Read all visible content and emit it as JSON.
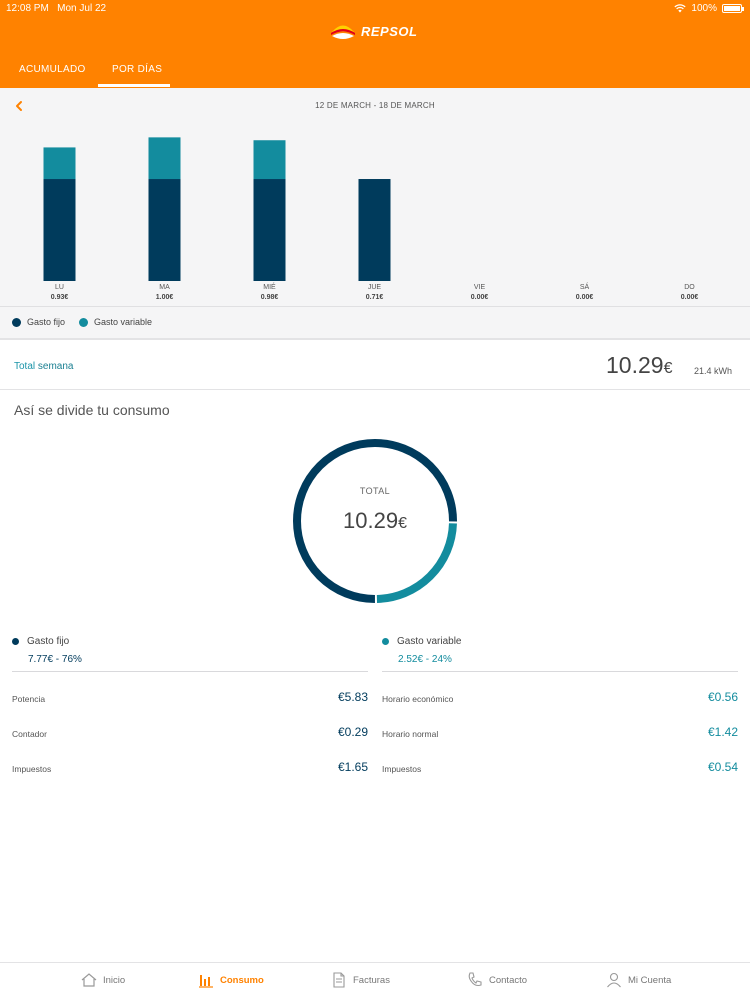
{
  "status": {
    "time": "12:08 PM",
    "date": "Mon Jul 22",
    "battery": "100%"
  },
  "brand": {
    "name": "REPSOL"
  },
  "tabs": [
    {
      "label": "ACUMULADO"
    },
    {
      "label": "POR DÍAS"
    }
  ],
  "chart": {
    "range": "12 DE MARCH - 18 DE MARCH"
  },
  "chart_data": {
    "type": "bar",
    "stacked": true,
    "categories": [
      "LU",
      "MA",
      "MIÉ",
      "JUE",
      "VIE",
      "SÁ",
      "DO"
    ],
    "totals_labels": [
      "0.93€",
      "1.00€",
      "0.98€",
      "0.71€",
      "0.00€",
      "0.00€",
      "0.00€"
    ],
    "series": [
      {
        "name": "Gasto fijo",
        "color": "#003b5c",
        "values": [
          0.71,
          0.71,
          0.71,
          0.71,
          0,
          0,
          0
        ]
      },
      {
        "name": "Gasto variable",
        "color": "#138c9e",
        "values": [
          0.22,
          0.29,
          0.27,
          0,
          0,
          0,
          0
        ]
      }
    ],
    "ylim": [
      0,
      1.1
    ],
    "grid": false,
    "legend": "bottom-left"
  },
  "total": {
    "label_prefix": "Total",
    "label_period": "semana",
    "value": "10.29",
    "currency": "€",
    "kwh": "21.4 kWh"
  },
  "breakdown": {
    "title": "Así se divide tu consumo",
    "donut_label": "TOTAL",
    "donut_value": "10.29",
    "donut_currency": "€",
    "fijo": {
      "title": "Gasto fijo",
      "amount": "7.77",
      "currency": "€",
      "percent": "76%",
      "fraction": 0.755,
      "color": "#003b5c",
      "items": [
        {
          "label": "Potencia",
          "value": "€5.83"
        },
        {
          "label": "Contador",
          "value": "€0.29"
        },
        {
          "label": "Impuestos",
          "value": "€1.65"
        }
      ]
    },
    "variable": {
      "title": "Gasto variable",
      "amount": "2.52",
      "currency": "€",
      "percent": "24%",
      "fraction": 0.245,
      "color": "#138c9e",
      "items": [
        {
          "label": "Horario económico",
          "value": "€0.56"
        },
        {
          "label": "Horario normal",
          "value": "€1.42"
        },
        {
          "label": "Impuestos",
          "value": "€0.54"
        }
      ]
    }
  },
  "nav": [
    {
      "label": "Inicio",
      "icon": "home-icon"
    },
    {
      "label": "Consumo",
      "icon": "bar-chart-icon"
    },
    {
      "label": "Facturas",
      "icon": "document-icon"
    },
    {
      "label": "Contacto",
      "icon": "phone-icon"
    },
    {
      "label": "Mi Cuenta",
      "icon": "user-icon"
    }
  ]
}
